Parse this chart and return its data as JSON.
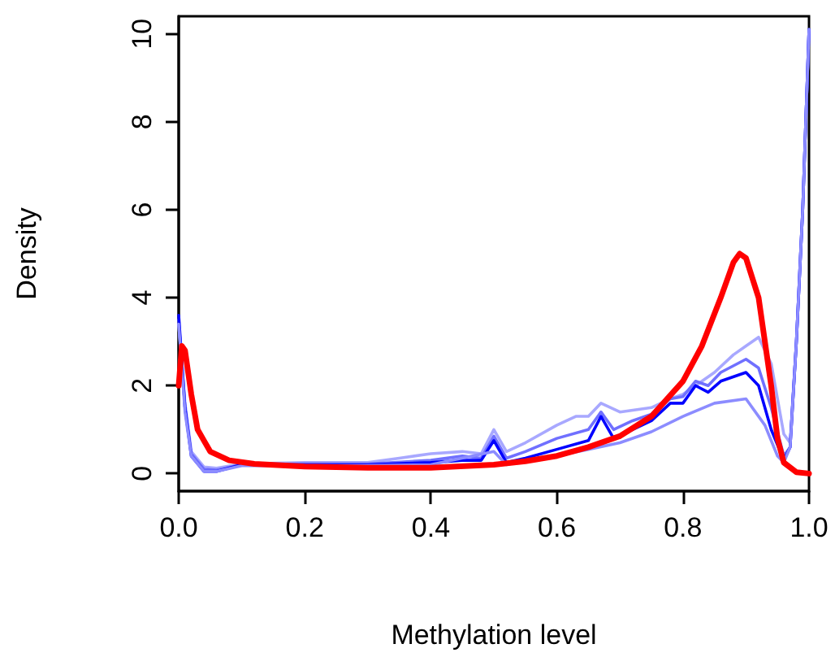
{
  "chart_data": {
    "type": "line",
    "xlabel": "Methylation level",
    "ylabel": "Density",
    "xlim": [
      0,
      1
    ],
    "ylim": [
      -0.4,
      10.4
    ],
    "xticks": [
      {
        "value": 0,
        "label": "0.0"
      },
      {
        "value": 0.2,
        "label": "0.2"
      },
      {
        "value": 0.4,
        "label": "0.4"
      },
      {
        "value": 0.6,
        "label": "0.6"
      },
      {
        "value": 0.8,
        "label": "0.8"
      },
      {
        "value": 1,
        "label": "1.0"
      }
    ],
    "yticks": [
      0,
      2,
      4,
      6,
      8,
      10
    ],
    "grid": false,
    "series": [
      {
        "color": "#a8a8ff",
        "x": [
          0,
          0.01,
          0.02,
          0.04,
          0.06,
          0.1,
          0.2,
          0.3,
          0.35,
          0.4,
          0.45,
          0.48,
          0.5,
          0.52,
          0.55,
          0.6,
          0.63,
          0.65,
          0.67,
          0.7,
          0.75,
          0.78,
          0.8,
          0.82,
          0.85,
          0.88,
          0.9,
          0.92,
          0.94,
          0.96,
          0.97,
          0.98,
          0.99,
          1
        ],
        "values": [
          3.4,
          1.6,
          0.5,
          0.15,
          0.12,
          0.22,
          0.25,
          0.25,
          0.35,
          0.45,
          0.5,
          0.45,
          1.0,
          0.5,
          0.7,
          1.1,
          1.3,
          1.3,
          1.6,
          1.4,
          1.5,
          1.7,
          1.8,
          2.0,
          2.3,
          2.7,
          2.9,
          3.1,
          2.5,
          0.9,
          0.7,
          3.0,
          6.0,
          10.1
        ]
      },
      {
        "color": "#7070ff",
        "x": [
          0,
          0.01,
          0.02,
          0.04,
          0.06,
          0.1,
          0.2,
          0.3,
          0.4,
          0.45,
          0.48,
          0.5,
          0.52,
          0.55,
          0.6,
          0.65,
          0.67,
          0.69,
          0.72,
          0.75,
          0.78,
          0.8,
          0.82,
          0.84,
          0.86,
          0.9,
          0.92,
          0.94,
          0.96,
          0.97,
          0.98,
          0.99,
          1
        ],
        "values": [
          3.5,
          1.5,
          0.45,
          0.1,
          0.08,
          0.2,
          0.22,
          0.22,
          0.3,
          0.4,
          0.35,
          0.85,
          0.35,
          0.5,
          0.8,
          1.0,
          1.4,
          1.0,
          1.2,
          1.35,
          1.7,
          1.75,
          2.1,
          2.0,
          2.3,
          2.6,
          2.4,
          1.5,
          0.4,
          0.6,
          3.0,
          6.0,
          10.1
        ]
      },
      {
        "color": "#0000ff",
        "x": [
          0,
          0.01,
          0.02,
          0.04,
          0.06,
          0.1,
          0.2,
          0.3,
          0.4,
          0.45,
          0.48,
          0.5,
          0.52,
          0.55,
          0.6,
          0.65,
          0.67,
          0.69,
          0.72,
          0.75,
          0.78,
          0.8,
          0.82,
          0.84,
          0.86,
          0.9,
          0.92,
          0.94,
          0.96,
          0.97,
          0.98,
          0.99,
          1
        ],
        "values": [
          3.6,
          1.5,
          0.4,
          0.05,
          0.05,
          0.2,
          0.2,
          0.2,
          0.25,
          0.3,
          0.3,
          0.75,
          0.25,
          0.35,
          0.55,
          0.75,
          1.3,
          0.8,
          1.0,
          1.2,
          1.6,
          1.6,
          2.0,
          1.85,
          2.1,
          2.3,
          2.0,
          1.0,
          0.3,
          0.6,
          3.0,
          6.0,
          10.1
        ]
      },
      {
        "color": "#8c8cff",
        "x": [
          0,
          0.01,
          0.02,
          0.04,
          0.06,
          0.1,
          0.2,
          0.3,
          0.4,
          0.5,
          0.52,
          0.55,
          0.6,
          0.65,
          0.7,
          0.75,
          0.8,
          0.85,
          0.9,
          0.93,
          0.95,
          0.96,
          0.97,
          0.98,
          0.99,
          1
        ],
        "values": [
          3.4,
          1.4,
          0.4,
          0.05,
          0.05,
          0.18,
          0.18,
          0.18,
          0.2,
          0.5,
          0.2,
          0.3,
          0.4,
          0.55,
          0.7,
          0.95,
          1.3,
          1.6,
          1.7,
          1.1,
          0.4,
          0.25,
          0.6,
          3.0,
          6.0,
          10.1
        ]
      },
      {
        "color": "#ff0000",
        "x": [
          0,
          0.005,
          0.01,
          0.02,
          0.03,
          0.05,
          0.08,
          0.12,
          0.2,
          0.3,
          0.4,
          0.5,
          0.55,
          0.6,
          0.65,
          0.7,
          0.75,
          0.8,
          0.83,
          0.86,
          0.88,
          0.89,
          0.9,
          0.92,
          0.94,
          0.95,
          0.96,
          0.98,
          1
        ],
        "values": [
          2.0,
          2.9,
          2.8,
          1.8,
          1.0,
          0.5,
          0.3,
          0.22,
          0.16,
          0.13,
          0.13,
          0.2,
          0.28,
          0.4,
          0.6,
          0.85,
          1.3,
          2.1,
          2.9,
          4.0,
          4.8,
          5.0,
          4.9,
          4.0,
          2.0,
          0.8,
          0.25,
          0.03,
          0.0
        ]
      }
    ]
  }
}
